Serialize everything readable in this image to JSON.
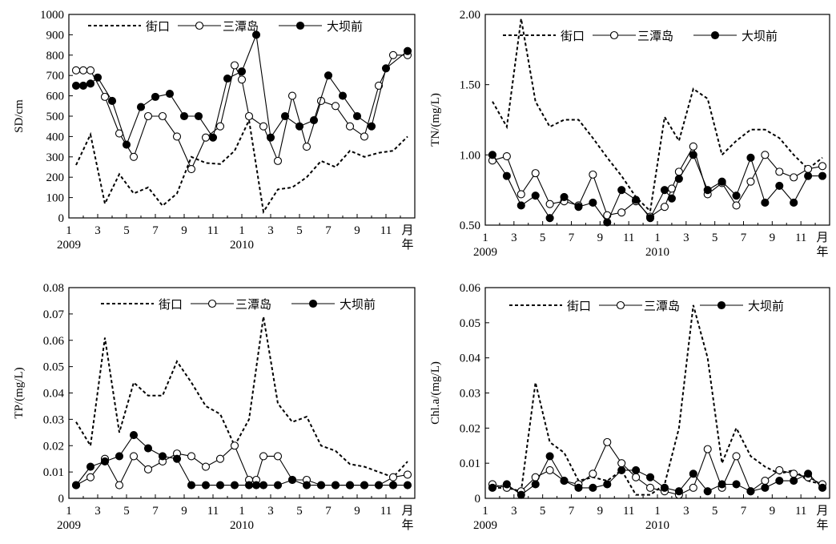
{
  "chart_data": [
    {
      "type": "line",
      "title": "",
      "ylabel": "SD/cm",
      "xlabel_year_labels": [
        "2009",
        "2010"
      ],
      "xlabel_unit_labels": [
        "月",
        "年"
      ],
      "x_ticks": [
        "1",
        "3",
        "5",
        "7",
        "9",
        "11",
        "1",
        "3",
        "5",
        "7",
        "9",
        "11"
      ],
      "xlim": [
        1,
        25
      ],
      "ylim": [
        0,
        1000
      ],
      "y_ticks": [
        "0",
        "100",
        "200",
        "300",
        "400",
        "500",
        "600",
        "700",
        "800",
        "900",
        "1000"
      ],
      "legend": [
        "街口",
        "三潭岛",
        "大坝前"
      ],
      "series": [
        {
          "name": "街口",
          "x": [
            1.5,
            2.5,
            3.5,
            4.5,
            5.5,
            6.5,
            7.5,
            8.5,
            9.5,
            10.5,
            11.5,
            12.5,
            13.5,
            14.5,
            15.5,
            16.5,
            17.5,
            18.5,
            19.5,
            20.5,
            21.5,
            22.5,
            23.5,
            24.5
          ],
          "values": [
            260,
            410,
            70,
            215,
            120,
            150,
            60,
            120,
            300,
            270,
            265,
            330,
            480,
            30,
            140,
            150,
            200,
            280,
            250,
            330,
            300,
            320,
            330,
            400
          ]
        },
        {
          "name": "三潭岛",
          "x": [
            1.5,
            2,
            2.5,
            3.5,
            4.5,
            5.5,
            6.5,
            7.5,
            8.5,
            9.5,
            10.5,
            11.5,
            12.5,
            13,
            13.5,
            14.5,
            15.5,
            16.5,
            17.5,
            18.5,
            19.5,
            20.5,
            21.5,
            22.5,
            23.5,
            24.5
          ],
          "values": [
            725,
            725,
            725,
            595,
            415,
            300,
            500,
            500,
            400,
            240,
            395,
            450,
            750,
            680,
            500,
            450,
            280,
            600,
            350,
            575,
            550,
            450,
            400,
            650,
            800,
            800
          ]
        },
        {
          "name": "大坝前",
          "x": [
            1.5,
            2,
            2.5,
            3,
            4,
            5,
            6,
            7,
            8,
            9,
            10,
            11,
            12,
            13,
            14,
            15,
            16,
            17,
            18,
            19,
            20,
            21,
            22,
            23,
            24.5
          ],
          "values": [
            650,
            650,
            660,
            690,
            575,
            360,
            545,
            595,
            610,
            500,
            500,
            395,
            685,
            720,
            900,
            395,
            500,
            450,
            480,
            700,
            600,
            500,
            450,
            735,
            820
          ]
        }
      ]
    },
    {
      "type": "line",
      "title": "",
      "ylabel": "TN/(mg/L)",
      "xlabel_year_labels": [
        "2009",
        "2010"
      ],
      "xlabel_unit_labels": [
        "月",
        "年"
      ],
      "x_ticks": [
        "1",
        "3",
        "5",
        "7",
        "9",
        "11",
        "1",
        "3",
        "5",
        "7",
        "9",
        "11"
      ],
      "xlim": [
        1,
        25
      ],
      "ylim": [
        0.5,
        2.0
      ],
      "y_ticks": [
        "0.50",
        "1.00",
        "1.50",
        "2.00"
      ],
      "legend": [
        "街口",
        "三潭岛",
        "大坝前"
      ],
      "series": [
        {
          "name": "街口",
          "x": [
            1.5,
            2.5,
            3.5,
            4.5,
            5.5,
            6.5,
            7.5,
            8.5,
            9.5,
            10.5,
            11.5,
            12.5,
            13.5,
            14.5,
            15.5,
            16.5,
            17.5,
            18.5,
            19.5,
            20.5,
            21.5,
            22.5,
            23.5,
            24.5
          ],
          "values": [
            1.38,
            1.2,
            1.97,
            1.38,
            1.2,
            1.25,
            1.25,
            1.12,
            0.98,
            0.85,
            0.7,
            0.6,
            1.27,
            1.1,
            1.47,
            1.4,
            1.0,
            1.1,
            1.18,
            1.18,
            1.12,
            1.0,
            0.9,
            0.98
          ]
        },
        {
          "name": "三潭岛",
          "x": [
            1.5,
            2.5,
            3.5,
            4.5,
            5.5,
            6.5,
            7.5,
            8.5,
            9.5,
            10.5,
            11.5,
            12.5,
            13.5,
            14,
            14.5,
            15.5,
            16.5,
            17.5,
            18.5,
            19.5,
            20.5,
            21.5,
            22.5,
            23.5,
            24.5
          ],
          "values": [
            0.96,
            0.99,
            0.72,
            0.87,
            0.65,
            0.67,
            0.64,
            0.86,
            0.57,
            0.59,
            0.67,
            0.56,
            0.63,
            0.76,
            0.88,
            1.06,
            0.72,
            0.8,
            0.64,
            0.81,
            1.0,
            0.88,
            0.84,
            0.9,
            0.92
          ]
        },
        {
          "name": "大坝前",
          "x": [
            1.5,
            2.5,
            3.5,
            4.5,
            5.5,
            6.5,
            7.5,
            8.5,
            9.5,
            10.5,
            11.5,
            12.5,
            13.5,
            14,
            14.5,
            15.5,
            16.5,
            17.5,
            18.5,
            19.5,
            20.5,
            21.5,
            22.5,
            23.5,
            24.5
          ],
          "values": [
            1.0,
            0.85,
            0.64,
            0.71,
            0.55,
            0.7,
            0.63,
            0.66,
            0.52,
            0.75,
            0.68,
            0.55,
            0.75,
            0.69,
            0.83,
            1.0,
            0.75,
            0.81,
            0.71,
            0.98,
            0.66,
            0.78,
            0.66,
            0.85,
            0.85
          ]
        }
      ]
    },
    {
      "type": "line",
      "title": "",
      "ylabel": "TP/(mg/L)",
      "xlabel_year_labels": [
        "2009",
        "2010"
      ],
      "xlabel_unit_labels": [
        "月",
        "年"
      ],
      "x_ticks": [
        "1",
        "3",
        "5",
        "7",
        "9",
        "11",
        "1",
        "3",
        "5",
        "7",
        "9",
        "11"
      ],
      "xlim": [
        1,
        25
      ],
      "ylim": [
        0,
        0.08
      ],
      "y_ticks": [
        "0",
        "0.01",
        "0.02",
        "0.03",
        "0.04",
        "0.05",
        "0.06",
        "0.07",
        "0.08"
      ],
      "legend": [
        "街口",
        "三潭岛",
        "大坝前"
      ],
      "series": [
        {
          "name": "街口",
          "x": [
            1.5,
            2.5,
            3.5,
            4.5,
            5.5,
            6.5,
            7.5,
            8.5,
            9.5,
            10.5,
            11.5,
            12.5,
            13.5,
            14.5,
            15.5,
            16.5,
            17.5,
            18.5,
            19.5,
            20.5,
            21.5,
            22.5,
            23.5,
            24.5
          ],
          "values": [
            0.029,
            0.02,
            0.061,
            0.025,
            0.044,
            0.039,
            0.039,
            0.052,
            0.044,
            0.035,
            0.032,
            0.02,
            0.03,
            0.069,
            0.036,
            0.029,
            0.031,
            0.02,
            0.018,
            0.013,
            0.012,
            0.01,
            0.008,
            0.014
          ]
        },
        {
          "name": "三潭岛",
          "x": [
            1.5,
            2.5,
            3.5,
            4.5,
            5.5,
            6.5,
            7.5,
            8.5,
            9.5,
            10.5,
            11.5,
            12.5,
            13.5,
            14,
            14.5,
            15.5,
            16.5,
            17.5,
            18.5,
            19.5,
            20.5,
            21.5,
            22.5,
            23.5,
            24.5
          ],
          "values": [
            0.005,
            0.008,
            0.015,
            0.005,
            0.016,
            0.011,
            0.014,
            0.017,
            0.016,
            0.012,
            0.015,
            0.02,
            0.007,
            0.007,
            0.016,
            0.016,
            0.007,
            0.007,
            0.005,
            0.005,
            0.005,
            0.005,
            0.005,
            0.008,
            0.009
          ]
        },
        {
          "name": "大坝前",
          "x": [
            1.5,
            2.5,
            3.5,
            4.5,
            5.5,
            6.5,
            7.5,
            8.5,
            9.5,
            10.5,
            11.5,
            12.5,
            13.5,
            14,
            14.5,
            15.5,
            16.5,
            17.5,
            18.5,
            19.5,
            20.5,
            21.5,
            22.5,
            23.5,
            24.5
          ],
          "values": [
            0.005,
            0.012,
            0.014,
            0.016,
            0.024,
            0.019,
            0.016,
            0.015,
            0.005,
            0.005,
            0.005,
            0.005,
            0.005,
            0.005,
            0.005,
            0.005,
            0.007,
            0.005,
            0.005,
            0.005,
            0.005,
            0.005,
            0.005,
            0.005,
            0.005
          ]
        }
      ]
    },
    {
      "type": "line",
      "title": "",
      "ylabel": "Chl.a/(mg/L)",
      "xlabel_year_labels": [
        "2009",
        "2010"
      ],
      "xlabel_unit_labels": [
        "月",
        "年"
      ],
      "x_ticks": [
        "1",
        "3",
        "5",
        "7",
        "9",
        "11",
        "1",
        "3",
        "5",
        "7",
        "9",
        "11"
      ],
      "xlim": [
        1,
        25
      ],
      "ylim": [
        0,
        0.06
      ],
      "y_ticks": [
        "0",
        "0.01",
        "0.02",
        "0.03",
        "0.04",
        "0.05",
        "0.06"
      ],
      "legend": [
        "街口",
        "三潭岛",
        "大坝前"
      ],
      "series": [
        {
          "name": "街口",
          "x": [
            1.5,
            2.5,
            3.5,
            4.5,
            5.5,
            6.5,
            7.5,
            8.5,
            9.5,
            10.5,
            11.5,
            12.5,
            13.5,
            14.5,
            15.5,
            16.5,
            17.5,
            18.5,
            19.5,
            20.5,
            21.5,
            22.5,
            23.5,
            24.5
          ],
          "values": [
            0.003,
            0.003,
            0.002,
            0.033,
            0.016,
            0.013,
            0.005,
            0.006,
            0.005,
            0.008,
            0.001,
            0.001,
            0.004,
            0.02,
            0.055,
            0.04,
            0.01,
            0.02,
            0.012,
            0.009,
            0.007,
            0.008,
            0.005,
            0.004
          ]
        },
        {
          "name": "三潭岛",
          "x": [
            1.5,
            2.5,
            3.5,
            4.5,
            5.5,
            6.5,
            7.5,
            8.5,
            9.5,
            10.5,
            11.5,
            12.5,
            13.5,
            14.5,
            15.5,
            16.5,
            17.5,
            18.5,
            19.5,
            20.5,
            21.5,
            22.5,
            23.5,
            24.5
          ],
          "values": [
            0.004,
            0.003,
            0.002,
            0.006,
            0.008,
            0.005,
            0.004,
            0.007,
            0.016,
            0.01,
            0.006,
            0.003,
            0.002,
            0.001,
            0.003,
            0.014,
            0.003,
            0.012,
            0.002,
            0.005,
            0.008,
            0.007,
            0.006,
            0.004
          ]
        },
        {
          "name": "大坝前",
          "x": [
            1.5,
            2.5,
            3.5,
            4.5,
            5.5,
            6.5,
            7.5,
            8.5,
            9.5,
            10.5,
            11.5,
            12.5,
            13.5,
            14.5,
            15.5,
            16.5,
            17.5,
            18.5,
            19.5,
            20.5,
            21.5,
            22.5,
            23.5,
            24.5
          ],
          "values": [
            0.003,
            0.004,
            0.001,
            0.004,
            0.012,
            0.005,
            0.003,
            0.003,
            0.004,
            0.008,
            0.008,
            0.006,
            0.003,
            0.002,
            0.007,
            0.002,
            0.004,
            0.004,
            0.002,
            0.003,
            0.005,
            0.005,
            0.007,
            0.003
          ]
        }
      ]
    }
  ]
}
